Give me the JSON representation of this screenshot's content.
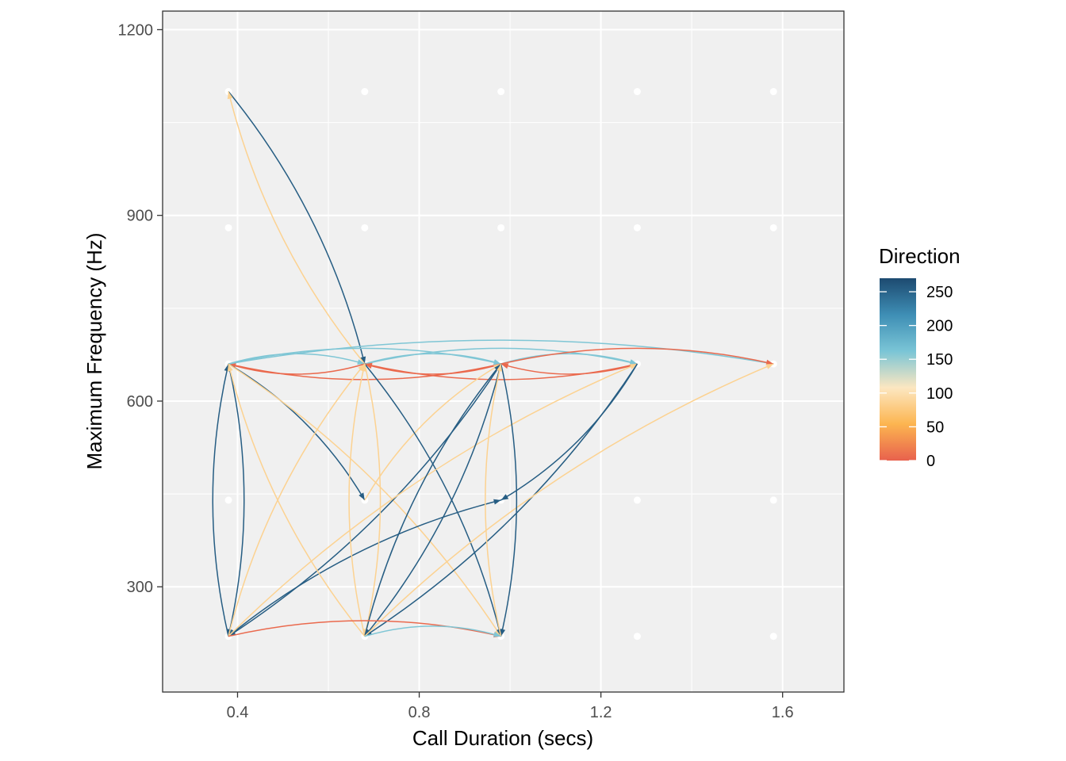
{
  "chart_data": {
    "type": "network-scatter",
    "xlabel": "Call Duration (secs)",
    "ylabel": "Maximum Frequency (Hz)",
    "xlim": [
      0.235,
      1.735
    ],
    "ylim": [
      130,
      1230
    ],
    "x_ticks": [
      0.4,
      0.8,
      1.2,
      1.6
    ],
    "x_tick_labels": [
      "0.4",
      "0.8",
      "1.2",
      "1.6"
    ],
    "y_ticks": [
      300,
      600,
      900,
      1200
    ],
    "y_tick_labels": [
      "300",
      "600",
      "900",
      "1200"
    ],
    "grid": true,
    "legend": {
      "title": "Direction",
      "position": "right",
      "range": [
        0,
        270
      ],
      "ticks": [
        0,
        50,
        100,
        150,
        200,
        250
      ],
      "tick_labels": [
        "0",
        "50",
        "100",
        "150",
        "200",
        "250"
      ],
      "color_stops": [
        "#E8614D",
        "#FCB550",
        "#FCE7C1",
        "#7AC5D6",
        "#3E8EB5",
        "#1D4A70"
      ]
    },
    "nodes": [
      {
        "x": 0.38,
        "y": 1100
      },
      {
        "x": 0.68,
        "y": 1100
      },
      {
        "x": 0.98,
        "y": 1100
      },
      {
        "x": 1.28,
        "y": 1100
      },
      {
        "x": 1.58,
        "y": 1100
      },
      {
        "x": 0.38,
        "y": 880
      },
      {
        "x": 0.68,
        "y": 880
      },
      {
        "x": 0.98,
        "y": 880
      },
      {
        "x": 1.28,
        "y": 880
      },
      {
        "x": 1.58,
        "y": 880
      },
      {
        "x": 0.38,
        "y": 660
      },
      {
        "x": 0.68,
        "y": 660
      },
      {
        "x": 0.98,
        "y": 660
      },
      {
        "x": 1.28,
        "y": 660
      },
      {
        "x": 1.58,
        "y": 660
      },
      {
        "x": 0.38,
        "y": 440
      },
      {
        "x": 0.68,
        "y": 440
      },
      {
        "x": 0.98,
        "y": 440
      },
      {
        "x": 1.28,
        "y": 440
      },
      {
        "x": 1.58,
        "y": 440
      },
      {
        "x": 0.38,
        "y": 220
      },
      {
        "x": 0.68,
        "y": 220
      },
      {
        "x": 0.98,
        "y": 220
      },
      {
        "x": 1.28,
        "y": 220
      },
      {
        "x": 1.58,
        "y": 220
      }
    ],
    "edges": [
      {
        "from": [
          0.38,
          1100
        ],
        "to": [
          0.68,
          660
        ],
        "direction": 255
      },
      {
        "from": [
          0.68,
          660
        ],
        "to": [
          0.38,
          1100
        ],
        "direction": 85
      },
      {
        "from": [
          0.38,
          660
        ],
        "to": [
          0.68,
          660
        ],
        "direction": 160
      },
      {
        "from": [
          0.68,
          660
        ],
        "to": [
          0.38,
          660
        ],
        "direction": 5
      },
      {
        "from": [
          0.38,
          660
        ],
        "to": [
          0.98,
          660
        ],
        "direction": 160
      },
      {
        "from": [
          0.98,
          660
        ],
        "to": [
          0.38,
          660
        ],
        "direction": 5
      },
      {
        "from": [
          0.68,
          660
        ],
        "to": [
          0.98,
          660
        ],
        "direction": 160
      },
      {
        "from": [
          0.98,
          660
        ],
        "to": [
          0.68,
          660
        ],
        "direction": 5
      },
      {
        "from": [
          0.68,
          660
        ],
        "to": [
          1.28,
          660
        ],
        "direction": 160
      },
      {
        "from": [
          1.28,
          660
        ],
        "to": [
          0.68,
          660
        ],
        "direction": 5
      },
      {
        "from": [
          0.98,
          660
        ],
        "to": [
          1.28,
          660
        ],
        "direction": 160
      },
      {
        "from": [
          1.28,
          660
        ],
        "to": [
          0.98,
          660
        ],
        "direction": 5
      },
      {
        "from": [
          0.38,
          660
        ],
        "to": [
          1.58,
          660
        ],
        "direction": 160
      },
      {
        "from": [
          0.98,
          660
        ],
        "to": [
          1.58,
          660
        ],
        "direction": 5
      },
      {
        "from": [
          0.38,
          660
        ],
        "to": [
          0.38,
          220
        ],
        "direction": 255
      },
      {
        "from": [
          0.38,
          220
        ],
        "to": [
          0.38,
          660
        ],
        "direction": 255
      },
      {
        "from": [
          0.38,
          660
        ],
        "to": [
          0.68,
          440
        ],
        "direction": 255
      },
      {
        "from": [
          0.68,
          440
        ],
        "to": [
          0.98,
          660
        ],
        "direction": 85
      },
      {
        "from": [
          0.38,
          660
        ],
        "to": [
          0.98,
          220
        ],
        "direction": 85
      },
      {
        "from": [
          0.68,
          660
        ],
        "to": [
          0.98,
          220
        ],
        "direction": 255
      },
      {
        "from": [
          0.38,
          220
        ],
        "to": [
          0.68,
          660
        ],
        "direction": 85
      },
      {
        "from": [
          0.98,
          660
        ],
        "to": [
          0.38,
          220
        ],
        "direction": 255
      },
      {
        "from": [
          0.38,
          220
        ],
        "to": [
          0.98,
          440
        ],
        "direction": 255
      },
      {
        "from": [
          0.38,
          220
        ],
        "to": [
          1.28,
          660
        ],
        "direction": 85
      },
      {
        "from": [
          0.68,
          660
        ],
        "to": [
          0.68,
          220
        ],
        "direction": 85
      },
      {
        "from": [
          0.68,
          220
        ],
        "to": [
          0.68,
          660
        ],
        "direction": 85
      },
      {
        "from": [
          0.68,
          220
        ],
        "to": [
          0.98,
          660
        ],
        "direction": 255
      },
      {
        "from": [
          0.98,
          660
        ],
        "to": [
          0.68,
          220
        ],
        "direction": 255
      },
      {
        "from": [
          1.28,
          660
        ],
        "to": [
          0.68,
          220
        ],
        "direction": 255
      },
      {
        "from": [
          0.68,
          220
        ],
        "to": [
          1.58,
          660
        ],
        "direction": 85
      },
      {
        "from": [
          0.68,
          220
        ],
        "to": [
          0.38,
          660
        ],
        "direction": 85
      },
      {
        "from": [
          0.98,
          660
        ],
        "to": [
          0.98,
          220
        ],
        "direction": 255
      },
      {
        "from": [
          0.98,
          220
        ],
        "to": [
          0.98,
          660
        ],
        "direction": 85
      },
      {
        "from": [
          1.28,
          660
        ],
        "to": [
          0.98,
          440
        ],
        "direction": 255
      },
      {
        "from": [
          0.38,
          220
        ],
        "to": [
          0.98,
          220
        ],
        "direction": 5
      },
      {
        "from": [
          0.68,
          220
        ],
        "to": [
          0.98,
          220
        ],
        "direction": 160
      }
    ]
  }
}
